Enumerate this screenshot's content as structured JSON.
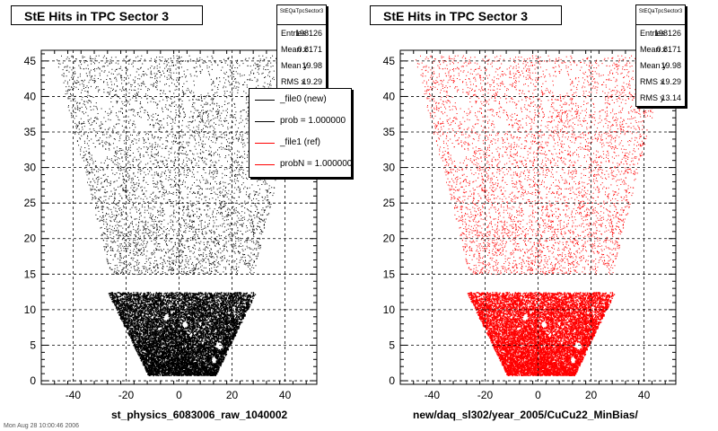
{
  "footer": {
    "timestamp": "Mon Aug 28 10:00:46 2006"
  },
  "chart_data": [
    {
      "type": "scatter",
      "title": "StE Hits in TPC Sector 3",
      "xlabel": "st_physics_6083006_raw_1040002",
      "ylabel": "",
      "xlim": [
        -52,
        52
      ],
      "ylim": [
        -0.5,
        46.5
      ],
      "x_ticks": [
        -40,
        -20,
        0,
        20,
        40
      ],
      "y_ticks": [
        0,
        5,
        10,
        15,
        20,
        25,
        30,
        35,
        40,
        45
      ],
      "grid": true,
      "marker_color": "#000000",
      "stats": {
        "name": "StEQaTpcSector3",
        "entries": {
          "label": "Entries",
          "value": "198126"
        },
        "mean_x": {
          "label": "Mean x",
          "value": "0.8171"
        },
        "mean_y": {
          "label": "Mean y",
          "value": "19.98"
        },
        "rms_x": {
          "label": "RMS x",
          "value": "19.29"
        }
      },
      "legend": {
        "placement": "top-right",
        "entries": [
          {
            "label": "_file0 (new)",
            "color": "#000000"
          },
          {
            "label": "prob = 1.000000",
            "color": "#000000"
          },
          {
            "label": "_file1 (ref)",
            "color": "#ff0000"
          },
          {
            "label": "probN = 1.000000",
            "color": "#ff0000"
          }
        ]
      }
    },
    {
      "type": "scatter",
      "title": "StE Hits in TPC Sector 3",
      "xlabel": "new/daq_sl302/year_2005/CuCu22_MinBias/",
      "ylabel": "",
      "xlim": [
        -52,
        52
      ],
      "ylim": [
        -0.5,
        46.5
      ],
      "x_ticks": [
        -40,
        -20,
        0,
        20,
        40
      ],
      "y_ticks": [
        0,
        5,
        10,
        15,
        20,
        25,
        30,
        35,
        40,
        45
      ],
      "grid": true,
      "marker_color": "#ff0000",
      "stats": {
        "name": "StEQaTpcSector3",
        "entries": {
          "label": "Entries",
          "value": "198126"
        },
        "mean_x": {
          "label": "Mean x",
          "value": "0.8171"
        },
        "mean_y": {
          "label": "Mean y",
          "value": "19.98"
        },
        "rms_x": {
          "label": "RMS x",
          "value": "19.29"
        },
        "rms_y": {
          "label": "RMS y",
          "value": "13.14"
        }
      }
    }
  ]
}
